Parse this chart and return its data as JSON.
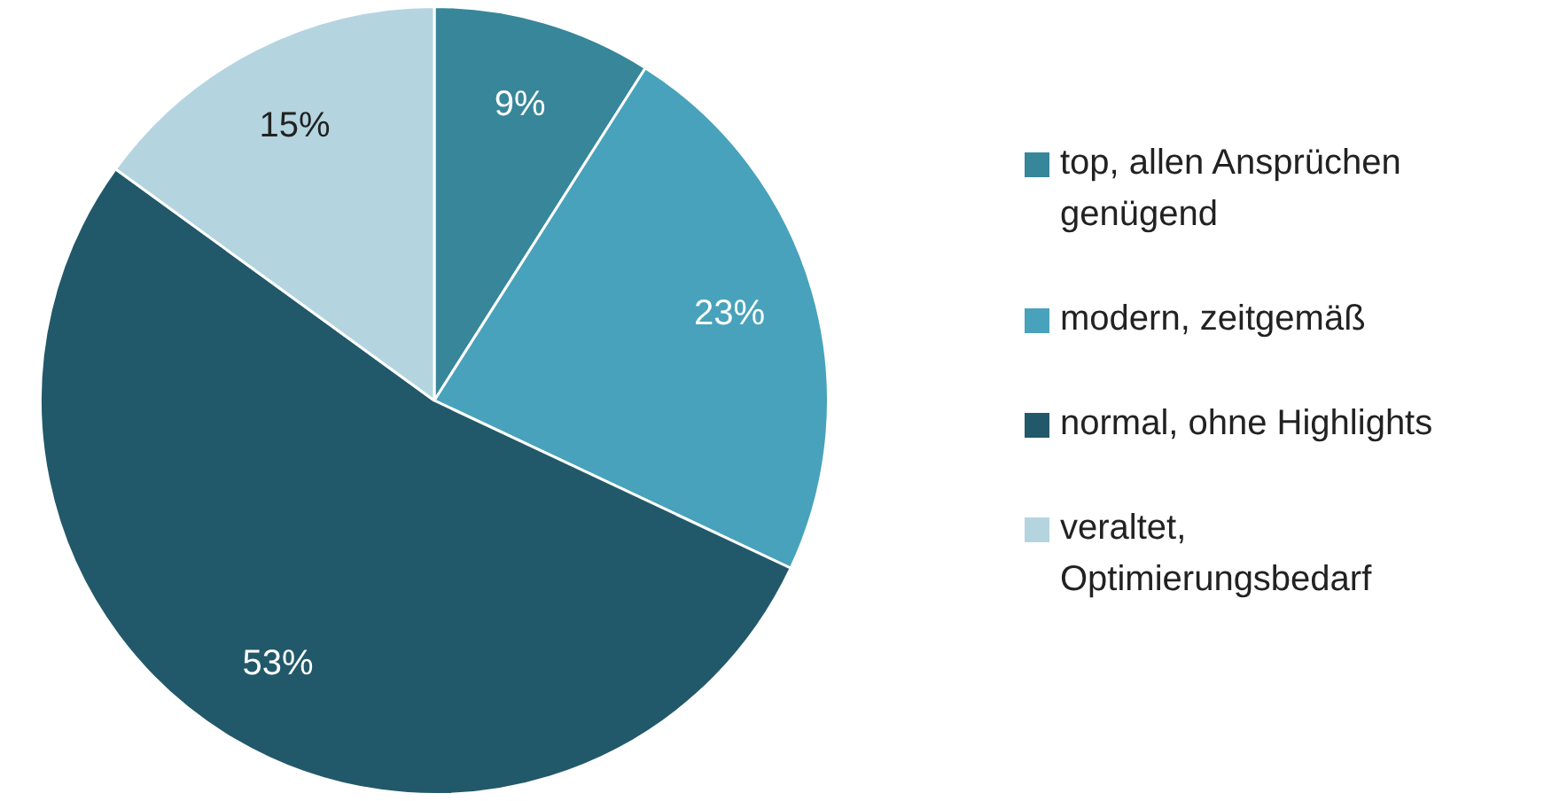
{
  "chart_data": {
    "type": "pie",
    "categories": [
      "top, allen Ansprüchen genügend",
      "modern, zeitgemäß",
      "normal, ohne Highlights",
      "veraltet, Optimierungsbedarf"
    ],
    "values": [
      9,
      23,
      53,
      15
    ],
    "colors": [
      "#37869a",
      "#48a2bb",
      "#22596a",
      "#b4d5e0"
    ],
    "value_labels": [
      "9%",
      "23%",
      "53%",
      "15%"
    ],
    "legend": "right"
  }
}
